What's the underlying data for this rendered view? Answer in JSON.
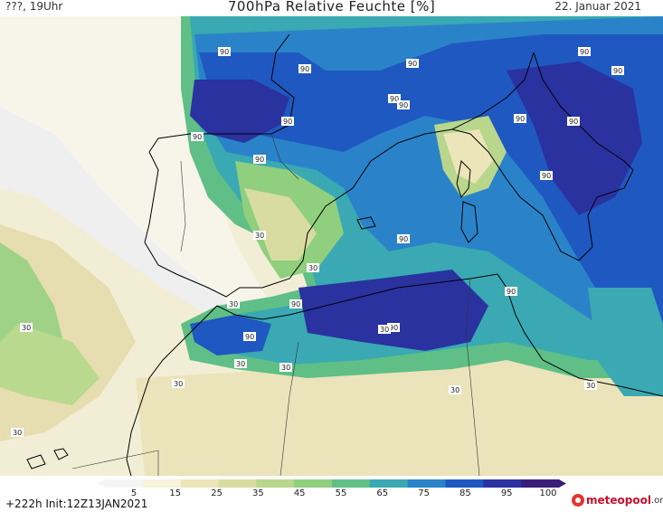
{
  "header": {
    "left": "???, 19Uhr",
    "title": "700hPa Relative Feuchte [%]",
    "date": "22. Januar 2021"
  },
  "footer": {
    "run": "+222h Init:12Z13JAN2021",
    "logo_name": "meteopool",
    "logo_tld": ".org"
  },
  "colorbar": {
    "ticks": [
      "5",
      "15",
      "25",
      "35",
      "45",
      "55",
      "65",
      "75",
      "85",
      "95",
      "100"
    ],
    "colors": [
      "#f5f5f5",
      "#f7f3dc",
      "#ece5b9",
      "#d9dca0",
      "#b8d68c",
      "#8fcf7e",
      "#5fbf86",
      "#3aa9b3",
      "#2a83c9",
      "#1f58c0",
      "#2a32a0",
      "#3a1c7a"
    ]
  },
  "map": {
    "contour_labels": [
      "90",
      "90",
      "90",
      "90",
      "90",
      "90",
      "90",
      "90",
      "90",
      "90",
      "90",
      "90",
      "90",
      "90",
      "90",
      "90",
      "90",
      "90",
      "30",
      "30",
      "30",
      "30",
      "30",
      "30",
      "30",
      "30",
      "30",
      "30",
      "30"
    ]
  }
}
